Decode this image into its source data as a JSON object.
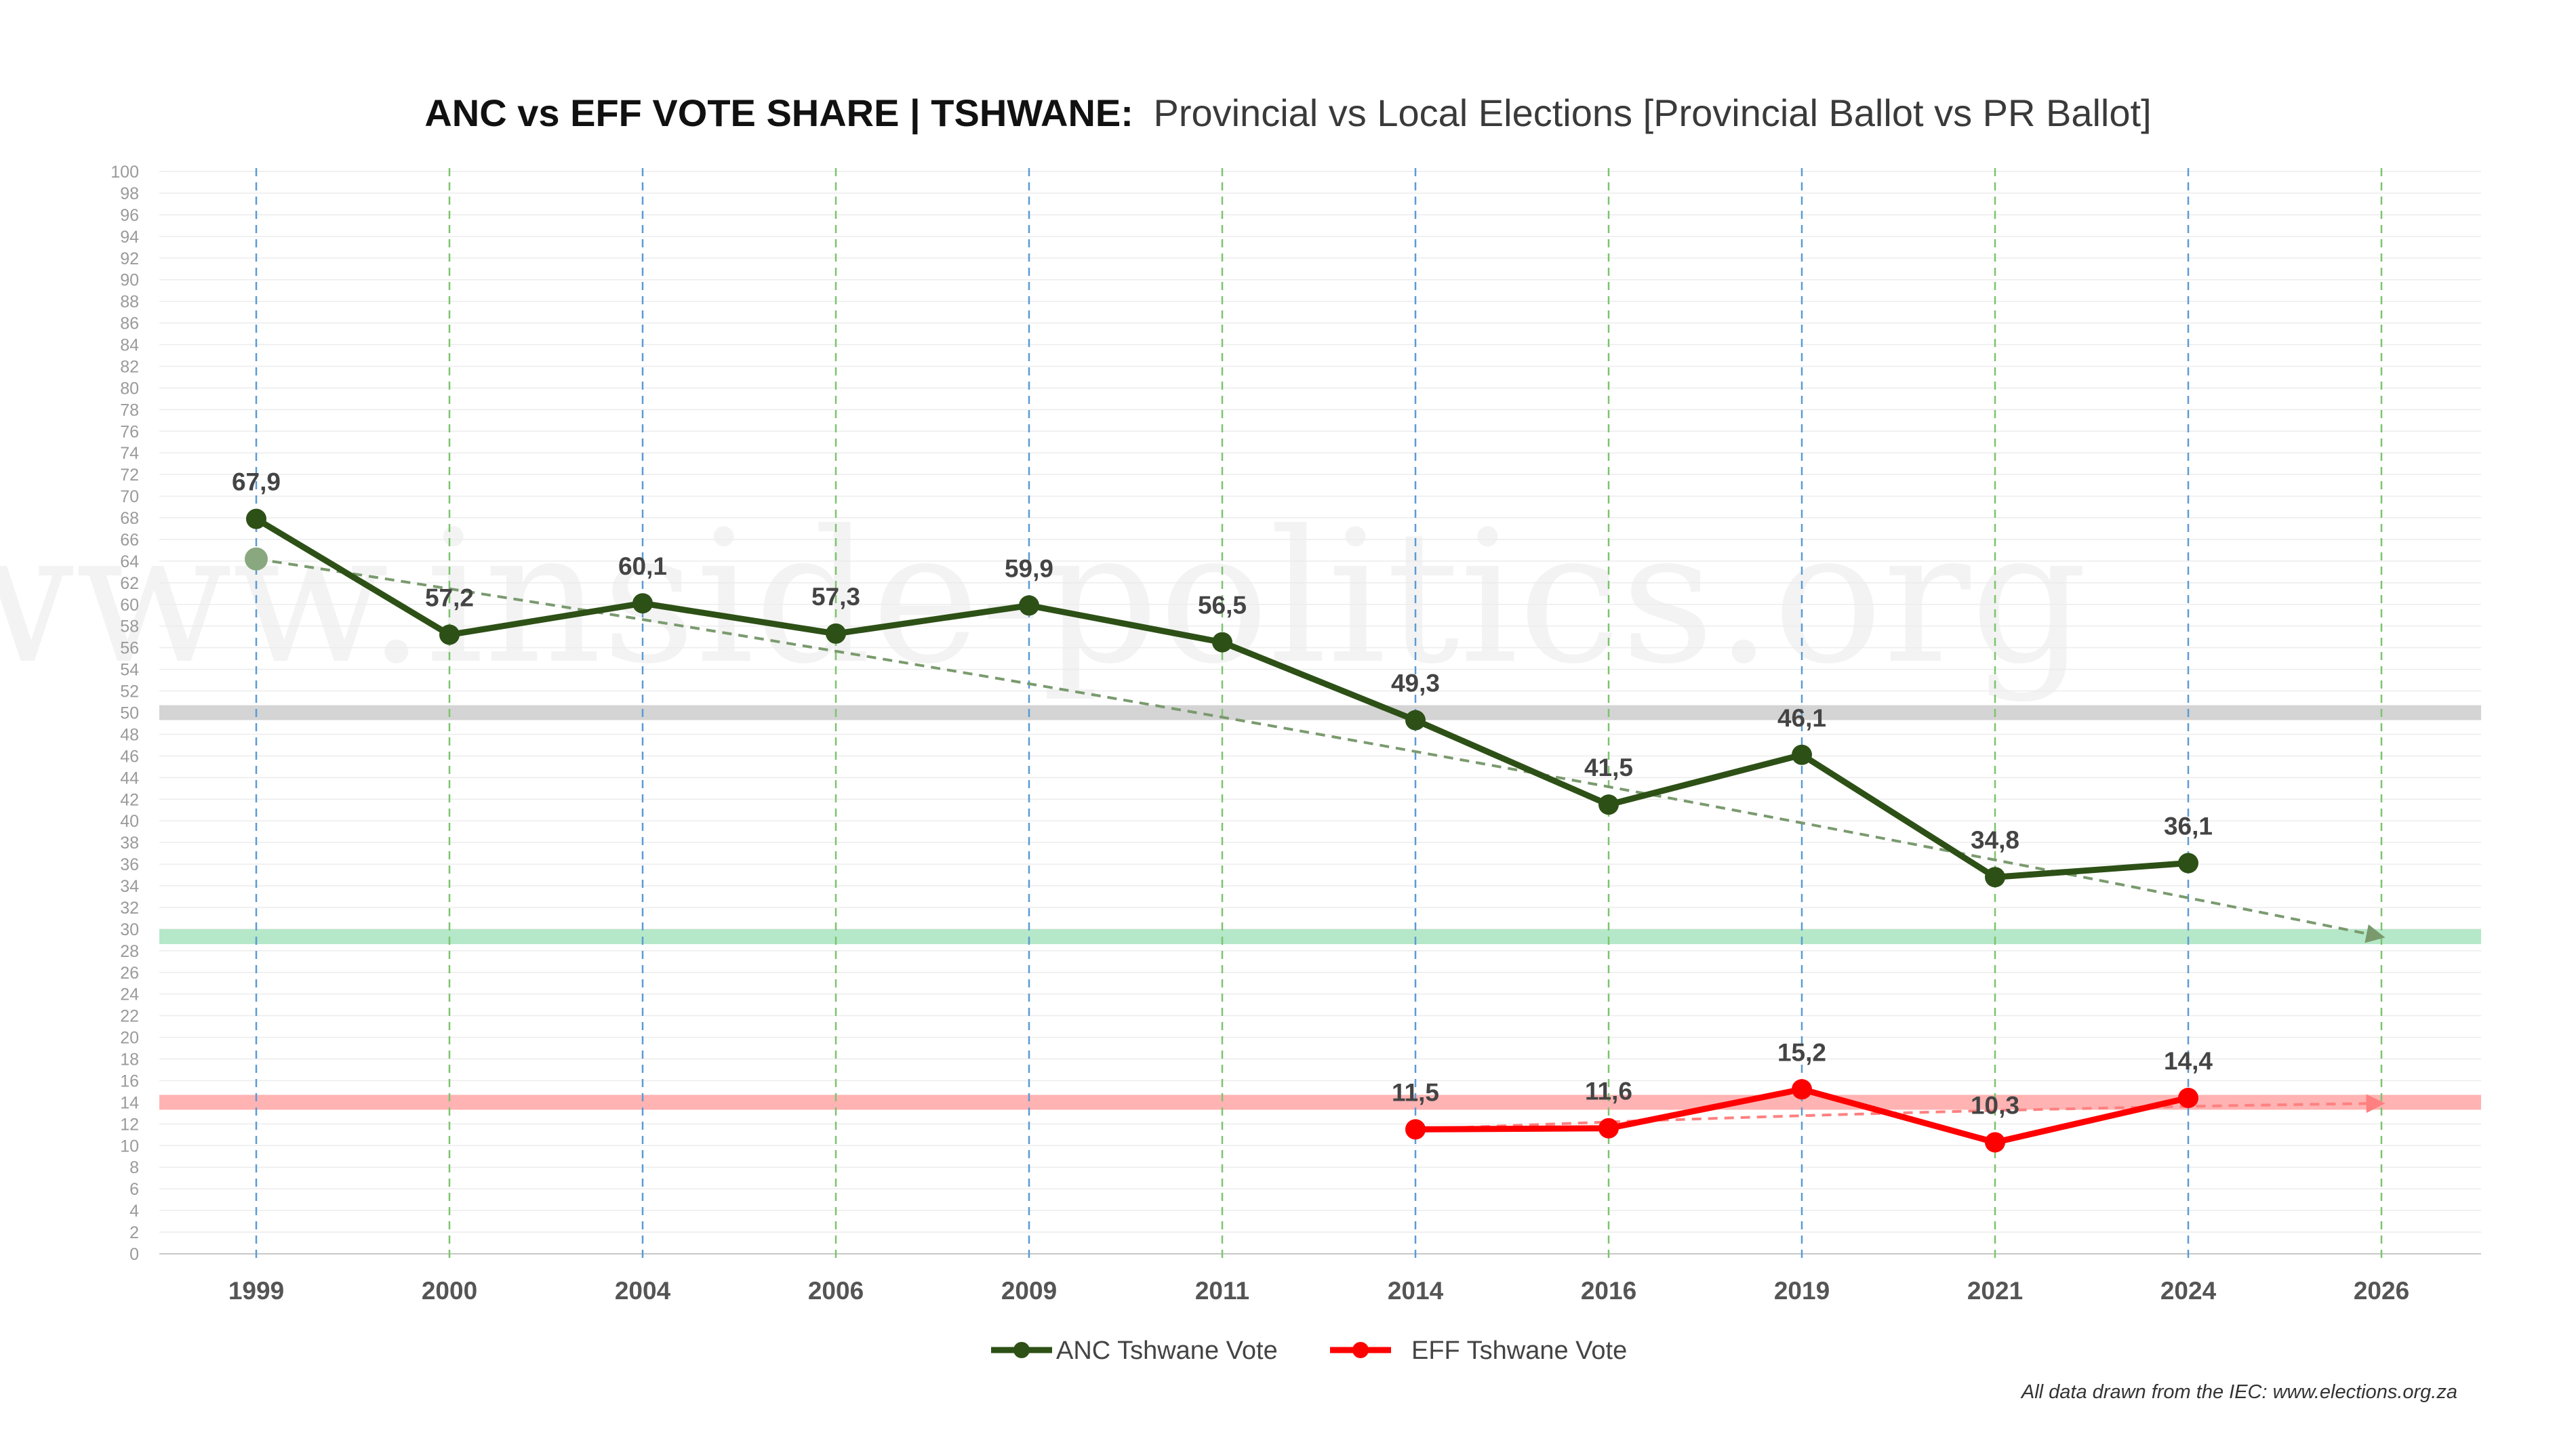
{
  "title": {
    "bold": "ANC vs EFF VOTE SHARE | TSHWANE:",
    "regular": "Provincial vs Local Elections [Provincial Ballot vs PR Ballot]"
  },
  "watermark": "www.inside-politics.org",
  "source_note": "All data drawn from the IEC: www.elections.org.za",
  "chart_data": {
    "type": "line",
    "title": "ANC vs EFF VOTE SHARE | TSHWANE: Provincial vs Local Elections [Provincial Ballot vs PR Ballot]",
    "xlabel": "",
    "ylabel": "",
    "categories": [
      "1999",
      "2000",
      "2004",
      "2006",
      "2009",
      "2011",
      "2014",
      "2016",
      "2019",
      "2021",
      "2024",
      "2026"
    ],
    "ylim": [
      0,
      100
    ],
    "ytick_step": 2,
    "grid": true,
    "legend_position": "bottom-center",
    "series": [
      {
        "name": "ANC Tshwane Vote",
        "color": "#2d5016",
        "values": [
          67.9,
          57.2,
          60.1,
          57.3,
          59.9,
          56.5,
          49.3,
          41.5,
          46.1,
          34.8,
          36.1,
          null
        ],
        "labels": [
          "67,9",
          "57,2",
          "60,1",
          "57,3",
          "59,9",
          "56,5",
          "49,3",
          "41,5",
          "46,1",
          "34,8",
          "36,1",
          ""
        ]
      },
      {
        "name": "EFF Tshwane Vote",
        "color": "#ff0000",
        "values": [
          null,
          null,
          null,
          null,
          null,
          null,
          11.5,
          11.6,
          15.2,
          10.3,
          14.4,
          null
        ],
        "labels": [
          "",
          "",
          "",
          "",
          "",
          "",
          "11,5",
          "11,6",
          "15,2",
          "10,3",
          "14,4",
          ""
        ]
      }
    ],
    "trendlines": [
      {
        "name": "ANC trend",
        "color": "#7a9a6e",
        "start": [
          "1999",
          64.2
        ],
        "end": [
          "2026",
          29.3
        ]
      },
      {
        "name": "EFF trend",
        "color": "#ff8080",
        "start": [
          "2014",
          11.5
        ],
        "end": [
          "2026",
          13.9
        ]
      }
    ],
    "reference_bands": [
      {
        "value": 50,
        "color": "#d4d4d4"
      },
      {
        "value": 29.3,
        "color": "#b5e8c8"
      },
      {
        "value": 14,
        "color": "#ffb3b3"
      }
    ],
    "vertical_guides": [
      {
        "category": "1999",
        "kind": "provincial",
        "color": "#5b9bd5"
      },
      {
        "category": "2000",
        "kind": "local",
        "color": "#7dc46e"
      },
      {
        "category": "2004",
        "kind": "provincial",
        "color": "#5b9bd5"
      },
      {
        "category": "2006",
        "kind": "local",
        "color": "#7dc46e"
      },
      {
        "category": "2009",
        "kind": "provincial",
        "color": "#5b9bd5"
      },
      {
        "category": "2011",
        "kind": "local",
        "color": "#7dc46e"
      },
      {
        "category": "2014",
        "kind": "provincial",
        "color": "#5b9bd5"
      },
      {
        "category": "2016",
        "kind": "local",
        "color": "#7dc46e"
      },
      {
        "category": "2019",
        "kind": "provincial",
        "color": "#5b9bd5"
      },
      {
        "category": "2021",
        "kind": "local",
        "color": "#7dc46e"
      },
      {
        "category": "2024",
        "kind": "provincial",
        "color": "#5b9bd5"
      },
      {
        "category": "2026",
        "kind": "local",
        "color": "#7dc46e"
      }
    ]
  }
}
